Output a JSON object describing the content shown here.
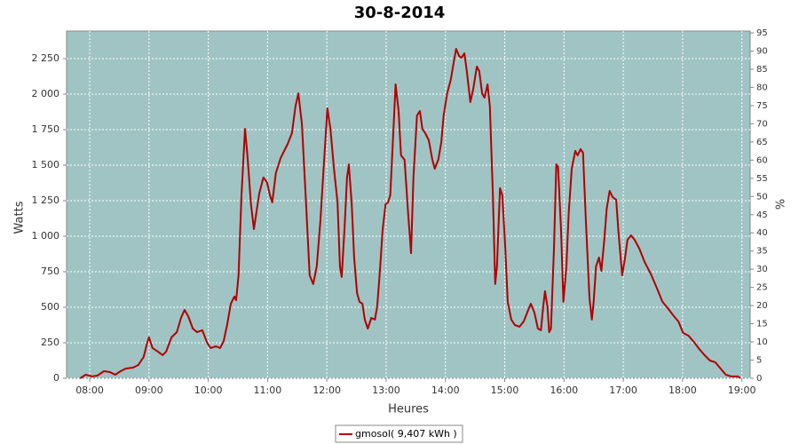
{
  "chart_data": {
    "type": "line",
    "title": "30-8-2014",
    "x_label": "Heures",
    "y_label": "Watts",
    "y2_label": "%",
    "x": [
      7.84,
      7.93,
      8.04,
      8.13,
      8.24,
      8.34,
      8.43,
      8.52,
      8.61,
      8.73,
      8.82,
      8.91,
      8.97,
      9.0,
      9.06,
      9.15,
      9.23,
      9.29,
      9.38,
      9.47,
      9.54,
      9.6,
      9.66,
      9.74,
      9.81,
      9.9,
      9.98,
      10.04,
      10.13,
      10.2,
      10.26,
      10.32,
      10.38,
      10.44,
      10.47,
      10.51,
      10.56,
      10.62,
      10.66,
      10.72,
      10.77,
      10.81,
      10.86,
      10.93,
      10.99,
      11.04,
      11.08,
      11.14,
      11.22,
      11.28,
      11.34,
      11.41,
      11.47,
      11.52,
      11.58,
      11.65,
      11.71,
      11.77,
      11.83,
      11.89,
      11.95,
      12.01,
      12.06,
      12.12,
      12.18,
      12.22,
      12.25,
      12.3,
      12.34,
      12.37,
      12.42,
      12.46,
      12.51,
      12.55,
      12.6,
      12.64,
      12.69,
      12.75,
      12.81,
      12.85,
      12.9,
      12.94,
      12.99,
      13.03,
      13.07,
      13.12,
      13.16,
      13.21,
      13.25,
      13.31,
      13.37,
      13.42,
      13.46,
      13.52,
      13.57,
      13.61,
      13.66,
      13.72,
      13.78,
      13.82,
      13.88,
      13.93,
      13.97,
      14.03,
      14.09,
      14.14,
      14.18,
      14.23,
      14.27,
      14.32,
      14.36,
      14.42,
      14.47,
      14.53,
      14.57,
      14.62,
      14.66,
      14.71,
      14.75,
      14.8,
      14.84,
      14.87,
      14.92,
      14.96,
      15.01,
      15.05,
      15.11,
      15.17,
      15.25,
      15.32,
      15.38,
      15.44,
      15.5,
      15.56,
      15.61,
      15.65,
      15.68,
      15.72,
      15.75,
      15.78,
      15.83,
      15.87,
      15.9,
      15.95,
      15.99,
      16.04,
      16.08,
      16.13,
      16.19,
      16.23,
      16.28,
      16.32,
      16.37,
      16.43,
      16.47,
      16.5,
      16.54,
      16.59,
      16.63,
      16.68,
      16.72,
      16.77,
      16.82,
      16.88,
      16.92,
      16.98,
      17.03,
      17.07,
      17.13,
      17.19,
      17.27,
      17.36,
      17.46,
      17.57,
      17.66,
      17.75,
      17.84,
      17.93,
      18.01,
      18.1,
      18.19,
      18.28,
      18.37,
      18.46,
      18.55,
      18.64,
      18.73,
      18.82,
      18.94,
      18.97
    ],
    "series": [
      {
        "name": "gmosol( 9,407 kWh )",
        "color": "#b00000",
        "values": [
          0,
          25,
          13,
          19,
          50,
          44,
          25,
          50,
          69,
          75,
          94,
          150,
          250,
          288,
          213,
          188,
          163,
          188,
          288,
          325,
          425,
          481,
          438,
          350,
          325,
          338,
          250,
          213,
          225,
          213,
          263,
          381,
          525,
          575,
          550,
          725,
          1288,
          1756,
          1569,
          1225,
          1050,
          1163,
          1300,
          1413,
          1381,
          1288,
          1238,
          1444,
          1550,
          1600,
          1650,
          1725,
          1913,
          2006,
          1788,
          1225,
          725,
          663,
          788,
          1100,
          1506,
          1900,
          1756,
          1475,
          1238,
          788,
          713,
          1069,
          1413,
          1506,
          1225,
          850,
          600,
          538,
          525,
          413,
          350,
          425,
          413,
          506,
          788,
          1038,
          1225,
          1238,
          1288,
          1725,
          2069,
          1881,
          1569,
          1538,
          1163,
          881,
          1413,
          1850,
          1881,
          1756,
          1725,
          1675,
          1538,
          1475,
          1538,
          1663,
          1850,
          2006,
          2100,
          2225,
          2319,
          2269,
          2256,
          2288,
          2163,
          1944,
          2038,
          2194,
          2163,
          2006,
          1975,
          2069,
          1913,
          1288,
          663,
          788,
          1338,
          1288,
          913,
          538,
          413,
          375,
          363,
          400,
          463,
          525,
          463,
          350,
          338,
          506,
          613,
          506,
          325,
          350,
          913,
          1506,
          1488,
          1038,
          538,
          788,
          1163,
          1475,
          1600,
          1569,
          1613,
          1588,
          1100,
          563,
          413,
          538,
          788,
          850,
          756,
          975,
          1194,
          1319,
          1275,
          1256,
          1025,
          725,
          850,
          975,
          1006,
          975,
          913,
          819,
          738,
          631,
          538,
          494,
          444,
          400,
          319,
          300,
          256,
          206,
          163,
          125,
          113,
          69,
          25,
          13,
          13,
          0
        ]
      }
    ],
    "xlim": [
      7.61,
      19.14
    ],
    "xticks": [
      {
        "value": 8,
        "label": "08:00"
      },
      {
        "value": 9,
        "label": "09:00"
      },
      {
        "value": 10,
        "label": "10:00"
      },
      {
        "value": 11,
        "label": "11:00"
      },
      {
        "value": 12,
        "label": "12:00"
      },
      {
        "value": 13,
        "label": "13:00"
      },
      {
        "value": 14,
        "label": "14:00"
      },
      {
        "value": 15,
        "label": "15:00"
      },
      {
        "value": 16,
        "label": "16:00"
      },
      {
        "value": 17,
        "label": "17:00"
      },
      {
        "value": 18,
        "label": "18:00"
      },
      {
        "value": 19,
        "label": "19:00"
      }
    ],
    "ylim": [
      0,
      2444
    ],
    "yticks": [
      0,
      250,
      500,
      750,
      {
        "value": 1000,
        "label": "1 000"
      },
      {
        "value": 1250,
        "label": "1 250"
      },
      {
        "value": 1500,
        "label": "1 500"
      },
      {
        "value": 1750,
        "label": "1 750"
      },
      {
        "value": 2000,
        "label": "2 000"
      },
      {
        "value": 2250,
        "label": "2 250"
      }
    ],
    "y2lim": [
      0,
      95.5
    ],
    "y2ticks": [
      0,
      5,
      10,
      15,
      20,
      25,
      30,
      35,
      40,
      45,
      50,
      55,
      60,
      65,
      70,
      75,
      80,
      85,
      90,
      95
    ],
    "grid": true,
    "plot_color": "#a0c4c4"
  }
}
